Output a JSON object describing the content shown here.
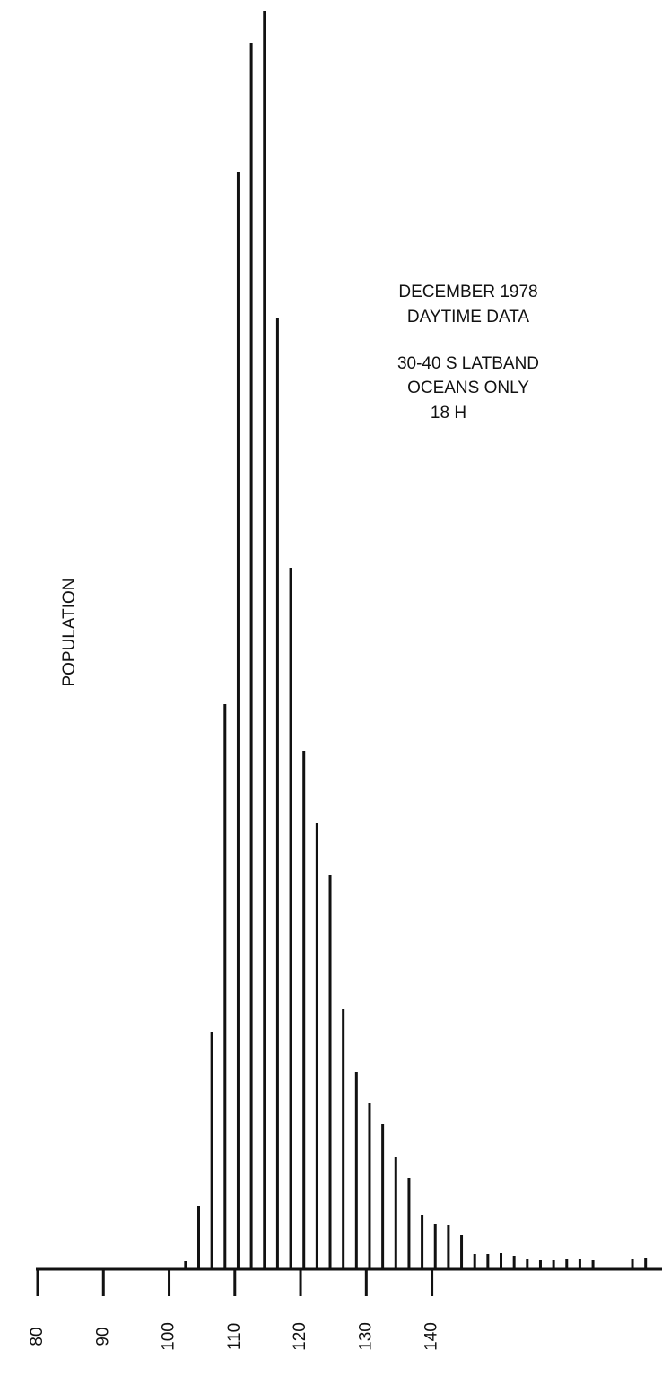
{
  "chart_data": {
    "type": "bar",
    "y_label": "POPULATION",
    "annotations": [
      "DECEMBER 1978",
      "DAYTIME DATA",
      "30-40 S LATBAND",
      "OCEANS ONLY",
      "18 H"
    ],
    "x": [
      102.5,
      104.5,
      106.5,
      108.5,
      110.5,
      112.5,
      114.5,
      116.5,
      118.5,
      120.5,
      122.5,
      124.5,
      126.5,
      128.5,
      130.5,
      132.5,
      134.5,
      136.5,
      138.5,
      140.5,
      142.5,
      144.5,
      146.5,
      148.5,
      150.5,
      152.5,
      154.5,
      156.5,
      158.5,
      160.5,
      162.5,
      164.5,
      170.5,
      172.5
    ],
    "values": [
      9,
      70,
      265,
      630,
      1223,
      1367,
      1403,
      1060,
      782,
      578,
      498,
      440,
      290,
      220,
      185,
      162,
      125,
      102,
      60,
      50,
      49,
      38,
      17,
      17,
      18,
      15,
      11,
      10,
      10,
      11,
      11,
      10,
      11,
      12
    ],
    "color": "#111111",
    "xlim": [
      80,
      175
    ],
    "xticks": [
      80,
      90,
      100,
      110,
      120,
      130,
      140
    ],
    "ylim": [
      0,
      1403
    ]
  }
}
